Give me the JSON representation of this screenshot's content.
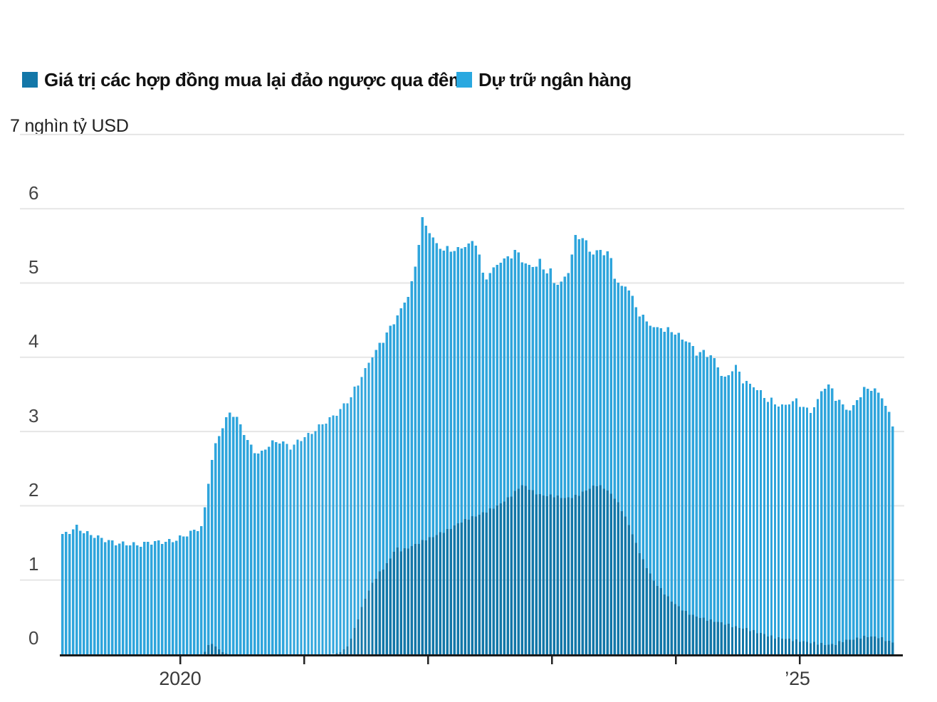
{
  "legend": {
    "series1": {
      "label": "Giá trị các hợp đồng mua lại đảo ngược qua đêm",
      "color": "#1377a8"
    },
    "series2": {
      "label": "Dự trữ ngân hàng",
      "color": "#29a8e0"
    }
  },
  "axes": {
    "y_unit_label": "7 nghìn tỷ USD",
    "y_ticks": [
      "6",
      "5",
      "4",
      "3",
      "2",
      "1",
      "0"
    ],
    "x_tick_labels": [
      "2020",
      "’25"
    ]
  },
  "chart_data": {
    "type": "bar",
    "stacked": true,
    "title": "",
    "ylabel": "nghìn tỷ USD",
    "ylim": [
      0,
      7
    ],
    "ytick_values": [
      0,
      1,
      2,
      3,
      4,
      5,
      6
    ],
    "grid": true,
    "legend_position": "top",
    "x_unit": "decimal_year",
    "x_axis_years": [
      2020,
      2021,
      2022,
      2023,
      2024,
      2025
    ],
    "x_axis_labeled_years": [
      "2020",
      "’25"
    ],
    "x_range": [
      2019.04,
      2025.77
    ],
    "x": [
      2019.04,
      2019.1,
      2019.17,
      2019.22,
      2019.3,
      2019.4,
      2019.5,
      2019.6,
      2019.67,
      2019.75,
      2019.85,
      2019.95,
      2020.05,
      2020.13,
      2020.18,
      2020.22,
      2020.26,
      2020.3,
      2020.35,
      2020.4,
      2020.45,
      2020.5,
      2020.55,
      2020.6,
      2020.65,
      2020.7,
      2020.75,
      2020.8,
      2020.85,
      2020.9,
      2020.95,
      2021.0,
      2021.05,
      2021.1,
      2021.15,
      2021.2,
      2021.25,
      2021.3,
      2021.35,
      2021.4,
      2021.45,
      2021.5,
      2021.55,
      2021.6,
      2021.65,
      2021.7,
      2021.74,
      2021.78,
      2021.82,
      2021.86,
      2021.9,
      2021.95,
      2022.0,
      2022.04,
      2022.08,
      2022.17,
      2022.25,
      2022.33,
      2022.4,
      2022.44,
      2022.48,
      2022.54,
      2022.58,
      2022.63,
      2022.68,
      2022.72,
      2022.76,
      2022.8,
      2022.86,
      2022.9,
      2022.95,
      2022.98,
      2023.02,
      2023.06,
      2023.1,
      2023.13,
      2023.15,
      2023.17,
      2023.19,
      2023.22,
      2023.25,
      2023.28,
      2023.32,
      2023.36,
      2023.4,
      2023.44,
      2023.47,
      2023.49,
      2023.52,
      2023.57,
      2023.6,
      2023.63,
      2023.66,
      2023.69,
      2023.72,
      2023.75,
      2023.79,
      2023.83,
      2023.88,
      2023.92,
      2023.96,
      2024.0,
      2024.04,
      2024.08,
      2024.13,
      2024.17,
      2024.21,
      2024.25,
      2024.29,
      2024.33,
      2024.38,
      2024.42,
      2024.46,
      2024.5,
      2024.54,
      2024.58,
      2024.63,
      2024.67,
      2024.71,
      2024.75,
      2024.79,
      2024.83,
      2024.88,
      2024.92,
      2024.96,
      2025.0,
      2025.04,
      2025.08,
      2025.13,
      2025.17,
      2025.21,
      2025.25,
      2025.29,
      2025.33,
      2025.38,
      2025.42,
      2025.46,
      2025.5,
      2025.54,
      2025.58,
      2025.63,
      2025.67,
      2025.71,
      2025.75,
      2025.77
    ],
    "series": [
      {
        "name": "Giá trị các hợp đồng mua lại đảo ngược qua đêm",
        "color": "#1377a8",
        "values": [
          0,
          0,
          0,
          0,
          0,
          0,
          0,
          0,
          0,
          0,
          0,
          0,
          0,
          0,
          0,
          0.1,
          0.15,
          0.08,
          0.02,
          0,
          0,
          0,
          0,
          0,
          0,
          0,
          0,
          0,
          0,
          0,
          0,
          0,
          0,
          0,
          0,
          0,
          0.01,
          0.03,
          0.1,
          0.3,
          0.55,
          0.78,
          0.95,
          1.08,
          1.18,
          1.3,
          1.44,
          1.4,
          1.42,
          1.45,
          1.48,
          1.52,
          1.56,
          1.58,
          1.62,
          1.68,
          1.77,
          1.83,
          1.87,
          1.9,
          1.93,
          1.98,
          2.02,
          2.08,
          2.15,
          2.22,
          2.28,
          2.25,
          2.18,
          2.15,
          2.13,
          2.14,
          2.13,
          2.12,
          2.1,
          2.11,
          2.11,
          2.12,
          2.13,
          2.15,
          2.18,
          2.21,
          2.25,
          2.28,
          2.26,
          2.22,
          2.17,
          2.14,
          2.08,
          1.93,
          1.82,
          1.72,
          1.58,
          1.45,
          1.33,
          1.22,
          1.1,
          0.97,
          0.88,
          0.8,
          0.73,
          0.67,
          0.62,
          0.57,
          0.53,
          0.51,
          0.49,
          0.47,
          0.45,
          0.44,
          0.42,
          0.4,
          0.38,
          0.36,
          0.35,
          0.34,
          0.31,
          0.29,
          0.27,
          0.25,
          0.23,
          0.22,
          0.21,
          0.2,
          0.19,
          0.18,
          0.17,
          0.16,
          0.15,
          0.14,
          0.13,
          0.13,
          0.14,
          0.17,
          0.19,
          0.2,
          0.21,
          0.23,
          0.24,
          0.24,
          0.23,
          0.21,
          0.18,
          0.16,
          0.14
        ]
      },
      {
        "name": "Dự trữ ngân hàng",
        "color": "#2fa5dc",
        "values": [
          1.6,
          1.63,
          1.7,
          1.63,
          1.6,
          1.56,
          1.5,
          1.47,
          1.45,
          1.5,
          1.53,
          1.55,
          1.6,
          1.66,
          1.7,
          2.1,
          2.5,
          2.82,
          3.08,
          3.28,
          3.22,
          3.05,
          2.85,
          2.72,
          2.67,
          2.78,
          2.85,
          2.88,
          2.85,
          2.8,
          2.88,
          2.93,
          2.95,
          3.02,
          3.08,
          3.15,
          3.21,
          3.29,
          3.32,
          3.25,
          3.15,
          3.07,
          3.05,
          3.04,
          3.07,
          3.1,
          3.08,
          3.25,
          3.36,
          3.5,
          3.77,
          4.35,
          4.16,
          4.02,
          3.84,
          3.75,
          3.69,
          3.72,
          3.69,
          3.21,
          3.15,
          3.22,
          3.25,
          3.22,
          3.23,
          3.22,
          3.04,
          3.0,
          3.06,
          3.16,
          3.01,
          3.06,
          2.86,
          2.85,
          2.93,
          3.01,
          3.14,
          3.35,
          3.47,
          3.48,
          3.44,
          3.35,
          3.15,
          3.17,
          3.17,
          3.2,
          3.21,
          3.06,
          2.92,
          2.99,
          3.13,
          3.17,
          3.17,
          3.18,
          3.25,
          3.3,
          3.38,
          3.43,
          3.54,
          3.55,
          3.64,
          3.63,
          3.63,
          3.64,
          3.62,
          3.54,
          3.59,
          3.6,
          3.58,
          3.51,
          3.31,
          3.32,
          3.48,
          3.48,
          3.32,
          3.29,
          3.29,
          3.27,
          3.21,
          3.19,
          3.19,
          3.15,
          3.14,
          3.19,
          3.22,
          3.18,
          3.13,
          3.08,
          3.2,
          3.38,
          3.51,
          3.49,
          3.34,
          3.23,
          3.12,
          3.08,
          3.19,
          3.27,
          3.33,
          3.32,
          3.3,
          3.25,
          3.12,
          2.96,
          2.89
        ]
      }
    ]
  }
}
